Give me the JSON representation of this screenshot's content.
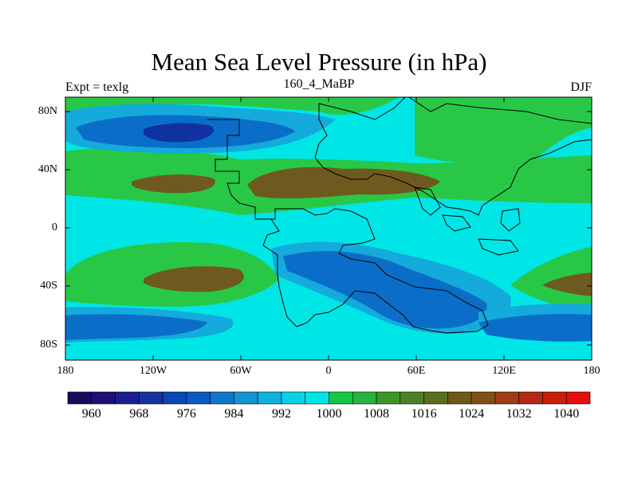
{
  "title": "Mean Sea Level Pressure (in hPa)",
  "subtitle": {
    "left": "Expt = texlg",
    "center": "160_4_MaBP",
    "right": "DJF"
  },
  "axes": {
    "y_ticks": [
      "80N",
      "40N",
      "0",
      "40S",
      "80S"
    ],
    "x_ticks": [
      "180",
      "120W",
      "60W",
      "0",
      "60E",
      "120E",
      "180"
    ]
  },
  "colorbar": {
    "labels": [
      "960",
      "968",
      "976",
      "984",
      "992",
      "1000",
      "1008",
      "1016",
      "1024",
      "1032",
      "1040"
    ],
    "colors": [
      "#190a5a",
      "#1e0f78",
      "#1a1e8c",
      "#1632a0",
      "#0a46b4",
      "#0a5ac3",
      "#0f78c8",
      "#1496d2",
      "#0fb4dc",
      "#0ad2e6",
      "#00e6e6",
      "#14c846",
      "#28b43c",
      "#3c9628",
      "#4b8228",
      "#5a6e1e",
      "#6e5a14",
      "#825014",
      "#a03c14",
      "#b42814",
      "#c81e0a",
      "#e60f0a"
    ]
  },
  "legend_colors": {
    "low_deep": "#1032a0",
    "low": "#0a6ec8",
    "mid_low": "#14aadc",
    "neutral": "#00e6e6",
    "mid_high": "#28c846",
    "high": "#6e5a1e"
  }
}
